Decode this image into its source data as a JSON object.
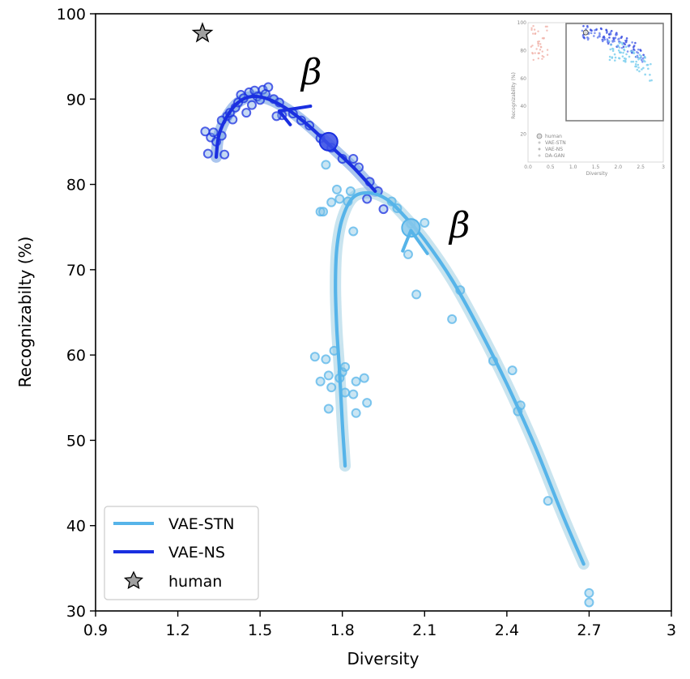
{
  "chart_data": {
    "type": "scatter",
    "title": "",
    "xlabel": "Diversity",
    "ylabel": "Recognizabilty (%)",
    "xlim": [
      0.9,
      3.0
    ],
    "ylim": [
      30,
      100
    ],
    "x_ticks": [
      "0.9",
      "1.2",
      "1.5",
      "1.8",
      "2.1",
      "2.4",
      "2.7",
      "3"
    ],
    "y_ticks": [
      "30",
      "40",
      "50",
      "60",
      "70",
      "80",
      "90",
      "100"
    ],
    "grid": false,
    "legend": {
      "placement": "lower-left",
      "entries": [
        {
          "label": "VAE-STN",
          "marker": "line",
          "color": "#56b4e9"
        },
        {
          "label": "VAE-NS",
          "marker": "line",
          "color": "#1a2fe0"
        },
        {
          "label": "human",
          "marker": "star",
          "color": "#a0a0a0"
        }
      ]
    },
    "annotations": [
      "β",
      "β"
    ],
    "series": [
      {
        "name": "VAE-STN",
        "color": "#56b4e9",
        "points": [
          [
            1.74,
            82.3
          ],
          [
            1.78,
            79.4
          ],
          [
            1.82,
            78.0
          ],
          [
            1.79,
            78.3
          ],
          [
            1.83,
            79.2
          ],
          [
            1.76,
            77.9
          ],
          [
            1.72,
            76.8
          ],
          [
            1.73,
            76.8
          ],
          [
            1.84,
            74.5
          ],
          [
            2.05,
            75.4
          ],
          [
            2.0,
            77.2
          ],
          [
            2.1,
            75.5
          ],
          [
            1.98,
            78.0
          ],
          [
            2.04,
            71.8
          ],
          [
            2.07,
            67.1
          ],
          [
            2.23,
            67.6
          ],
          [
            2.2,
            64.2
          ],
          [
            1.7,
            59.8
          ],
          [
            1.74,
            59.5
          ],
          [
            1.77,
            60.5
          ],
          [
            1.8,
            58.0
          ],
          [
            1.81,
            58.6
          ],
          [
            1.75,
            57.6
          ],
          [
            1.72,
            56.9
          ],
          [
            1.76,
            56.2
          ],
          [
            1.79,
            57.3
          ],
          [
            1.85,
            56.9
          ],
          [
            1.88,
            57.3
          ],
          [
            1.81,
            55.6
          ],
          [
            1.84,
            55.4
          ],
          [
            1.89,
            54.4
          ],
          [
            1.75,
            53.7
          ],
          [
            1.85,
            53.2
          ],
          [
            2.35,
            59.3
          ],
          [
            2.42,
            58.2
          ],
          [
            2.45,
            54.1
          ],
          [
            2.44,
            53.4
          ],
          [
            2.55,
            42.9
          ],
          [
            2.7,
            32.1
          ],
          [
            2.7,
            31.0
          ]
        ],
        "fit_curves": [
          [
            [
              1.81,
              47.0
            ],
            [
              1.8,
              52.0
            ],
            [
              1.79,
              58.0
            ],
            [
              1.78,
              63.0
            ],
            [
              1.775,
              68.0
            ],
            [
              1.78,
              72.5
            ],
            [
              1.8,
              76.0
            ],
            [
              1.84,
              78.5
            ],
            [
              1.9,
              79.0
            ],
            [
              1.96,
              78.3
            ],
            [
              2.02,
              76.5
            ],
            [
              2.1,
              73.5
            ],
            [
              2.2,
              68.8
            ],
            [
              2.3,
              63.0
            ],
            [
              2.4,
              56.6
            ],
            [
              2.5,
              49.5
            ],
            [
              2.6,
              41.5
            ],
            [
              2.68,
              35.5
            ]
          ]
        ],
        "highlight_point": [
          2.05,
          74.9
        ]
      },
      {
        "name": "VAE-NS",
        "color": "#1a2fe0",
        "points": [
          [
            1.3,
            86.2
          ],
          [
            1.32,
            85.5
          ],
          [
            1.34,
            85.0
          ],
          [
            1.31,
            83.6
          ],
          [
            1.37,
            83.5
          ],
          [
            1.33,
            86.1
          ],
          [
            1.36,
            87.5
          ],
          [
            1.38,
            88.0
          ],
          [
            1.4,
            87.6
          ],
          [
            1.39,
            88.4
          ],
          [
            1.41,
            89.0
          ],
          [
            1.42,
            89.6
          ],
          [
            1.43,
            90.5
          ],
          [
            1.45,
            88.4
          ],
          [
            1.46,
            90.8
          ],
          [
            1.48,
            91.0
          ],
          [
            1.49,
            90.3
          ],
          [
            1.47,
            89.3
          ],
          [
            1.5,
            89.9
          ],
          [
            1.51,
            91.1
          ],
          [
            1.53,
            91.4
          ],
          [
            1.52,
            90.6
          ],
          [
            1.55,
            90.0
          ],
          [
            1.57,
            89.6
          ],
          [
            1.58,
            88.1
          ],
          [
            1.56,
            88.0
          ],
          [
            1.62,
            88.3
          ],
          [
            1.65,
            87.5
          ],
          [
            1.68,
            86.9
          ],
          [
            1.72,
            85.4
          ],
          [
            1.76,
            84.3
          ],
          [
            1.8,
            83.0
          ],
          [
            1.84,
            83.0
          ],
          [
            1.86,
            82.0
          ],
          [
            1.9,
            80.3
          ],
          [
            1.93,
            79.2
          ],
          [
            1.89,
            78.3
          ],
          [
            1.95,
            77.1
          ],
          [
            1.36,
            85.7
          ],
          [
            1.44,
            90.1
          ]
        ],
        "fit_curves": [
          [
            [
              1.34,
              83.2
            ],
            [
              1.35,
              85.8
            ],
            [
              1.38,
              88.0
            ],
            [
              1.42,
              89.6
            ],
            [
              1.47,
              90.3
            ],
            [
              1.53,
              90.0
            ],
            [
              1.6,
              88.8
            ],
            [
              1.68,
              86.8
            ],
            [
              1.76,
              84.4
            ],
            [
              1.84,
              82.0
            ],
            [
              1.92,
              79.2
            ]
          ]
        ],
        "highlight_point": [
          1.75,
          85.0
        ]
      },
      {
        "name": "human",
        "color": "#a0a0a0",
        "points": [
          [
            1.29,
            97.7
          ]
        ]
      }
    ]
  },
  "inset": {
    "x_ticks": [
      "0.0",
      "0.5",
      "1.0",
      "1.5",
      "2.0",
      "2.5",
      "3"
    ],
    "y_ticks": [
      "100",
      "80",
      "60",
      "40",
      "20"
    ],
    "xlabel": "Diversity",
    "ylabel": "Recognizability (%)",
    "legend": [
      "human",
      "VAE-STN",
      "VAE-NS",
      "DA-GAN"
    ]
  }
}
